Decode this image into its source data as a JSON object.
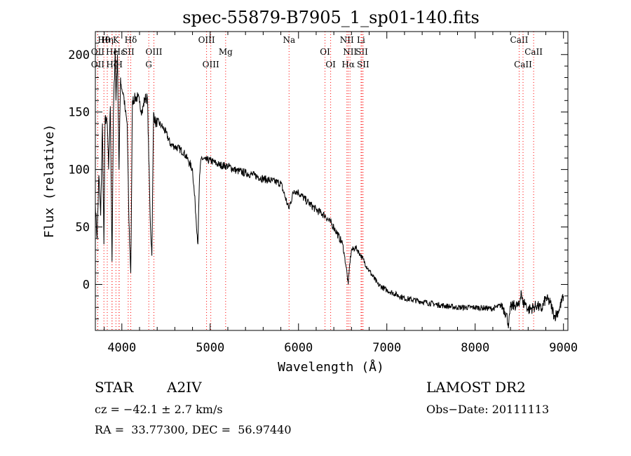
{
  "chart_data": {
    "type": "line",
    "title": "spec-55879-B7905_1_sp01-140.fits",
    "xlabel": "Wavelength (Å)",
    "ylabel": "Flux (relative)",
    "xlim": [
      3700,
      9050
    ],
    "ylim": [
      -40,
      220
    ],
    "xticks": [
      4000,
      5000,
      6000,
      7000,
      8000,
      9000
    ],
    "yticks": [
      0,
      50,
      100,
      150,
      200
    ],
    "grid": false,
    "line_color": "#000000",
    "marker_color": "#ff0000",
    "series": [
      {
        "x": [
          3700,
          3720,
          3740,
          3760,
          3780,
          3797,
          3810,
          3835,
          3850,
          3870,
          3889,
          3905,
          3925,
          3933,
          3950,
          3968,
          3985,
          4000,
          4020,
          4040,
          4060,
          4080,
          4101,
          4120,
          4150,
          4180,
          4200,
          4230,
          4260,
          4290,
          4320,
          4340,
          4360,
          4380,
          4400,
          4450,
          4500,
          4550,
          4600,
          4650,
          4700,
          4750,
          4800,
          4830,
          4861,
          4880,
          4900,
          4950,
          5000,
          5100,
          5200,
          5300,
          5400,
          5500,
          5600,
          5700,
          5800,
          5890,
          5950,
          6000,
          6100,
          6200,
          6300,
          6400,
          6500,
          6520,
          6540,
          6563,
          6580,
          6600,
          6650,
          6700,
          6800,
          6900,
          7000,
          7200,
          7400,
          7600,
          7800,
          8000,
          8200,
          8300,
          8350,
          8380,
          8400,
          8450,
          8498,
          8520,
          8542,
          8560,
          8600,
          8662,
          8700,
          8750,
          8800,
          8850,
          8900,
          8950,
          9000
        ],
        "y": [
          70,
          40,
          95,
          60,
          140,
          35,
          145,
          140,
          100,
          155,
          20,
          150,
          205,
          160,
          200,
          100,
          180,
          170,
          165,
          150,
          140,
          55,
          10,
          160,
          162,
          163,
          158,
          150,
          162,
          162,
          60,
          25,
          150,
          140,
          142,
          138,
          132,
          122,
          120,
          118,
          115,
          108,
          100,
          70,
          35,
          95,
          110,
          108,
          108,
          104,
          103,
          99,
          97,
          95,
          92,
          90,
          88,
          66,
          82,
          80,
          72,
          65,
          60,
          50,
          35,
          25,
          15,
          0,
          18,
          30,
          32,
          26,
          12,
          0,
          -5,
          -12,
          -15,
          -18,
          -20,
          -20,
          -21,
          -18,
          -25,
          -35,
          -20,
          -18,
          -19,
          -5,
          -18,
          -15,
          -22,
          -20,
          -18,
          -22,
          -12,
          -16,
          -28,
          -22,
          -10
        ]
      }
    ],
    "line_markers": [
      {
        "label": "Hθ",
        "x": 3797,
        "row": 0
      },
      {
        "label": "OII",
        "x": 3727,
        "row": 1
      },
      {
        "label": "OII",
        "x": 3727,
        "row": 2
      },
      {
        "label": "Hη",
        "x": 3835,
        "row": 0
      },
      {
        "label": "K",
        "x": 3933,
        "row": 0
      },
      {
        "label": "He",
        "x": 3889,
        "row": 1
      },
      {
        "label": "H",
        "x": 3968,
        "row": 2
      },
      {
        "label": "Hζ",
        "x": 3889,
        "row": 2
      },
      {
        "label": "Hε",
        "x": 3970,
        "row": 1
      },
      {
        "label": "SII",
        "x": 4072,
        "row": 1
      },
      {
        "label": "Hδ",
        "x": 4101,
        "row": 0
      },
      {
        "label": "OIII",
        "x": 4363,
        "row": 1
      },
      {
        "label": "G",
        "x": 4305,
        "row": 2
      },
      {
        "label": "OIII",
        "x": 4959,
        "row": 0
      },
      {
        "label": "OIII",
        "x": 5007,
        "row": 2
      },
      {
        "label": "Mg",
        "x": 5175,
        "row": 1
      },
      {
        "label": "Na",
        "x": 5893,
        "row": 0
      },
      {
        "label": "OI",
        "x": 6300,
        "row": 1
      },
      {
        "label": "OI",
        "x": 6364,
        "row": 2
      },
      {
        "label": "NII",
        "x": 6548,
        "row": 0
      },
      {
        "label": "NII",
        "x": 6583,
        "row": 1
      },
      {
        "label": "Hα",
        "x": 6563,
        "row": 2
      },
      {
        "label": "Li",
        "x": 6708,
        "row": 0
      },
      {
        "label": "SII",
        "x": 6717,
        "row": 1
      },
      {
        "label": "SII",
        "x": 6731,
        "row": 2
      },
      {
        "label": "CaII",
        "x": 8498,
        "row": 0
      },
      {
        "label": "CaII",
        "x": 8542,
        "row": 2
      },
      {
        "label": "CaII",
        "x": 8662,
        "row": 1
      }
    ]
  },
  "info": {
    "object_type": "STAR",
    "subclass": "A2IV",
    "survey": "LAMOST DR2",
    "velocity": "cz = −42.1 ± 2.7 km/s",
    "obs_date": "Obs−Date: 20111113",
    "coords": "RA =  33.77300, DEC =  56.97440"
  }
}
